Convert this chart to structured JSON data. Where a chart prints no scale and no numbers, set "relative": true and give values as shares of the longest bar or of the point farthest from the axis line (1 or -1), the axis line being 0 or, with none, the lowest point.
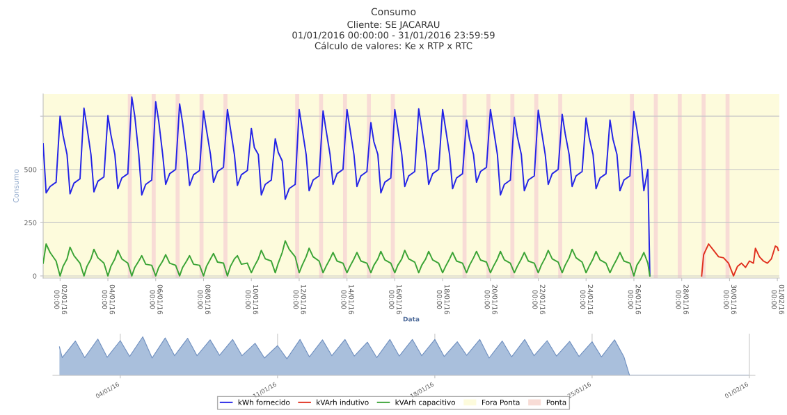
{
  "chart_data": [
    {
      "type": "line",
      "title": "Consumo",
      "subtitle": "Cliente: SE JACARAU\n01/01/2016 00:00:00 - 31/01/2016 23:59:59\nCálculo de valores: Ke x RTP x RTC",
      "xlabel": "Data",
      "ylabel": "Consumo",
      "x": [
        "2016-01-01T07:00",
        "2016-01-01T10:00",
        "2016-01-01T14:00",
        "2016-01-01T20:00",
        "2016-01-02T00:00",
        "2016-01-02T03:00",
        "2016-01-02T07:00",
        "2016-01-02T10:00",
        "2016-01-02T14:00",
        "2016-01-02T20:00",
        "2016-01-03T00:00",
        "2016-01-03T03:00",
        "2016-01-03T07:00",
        "2016-01-03T10:00",
        "2016-01-03T14:00",
        "2016-01-03T20:00",
        "2016-01-04T00:00",
        "2016-01-04T03:00",
        "2016-01-04T07:00",
        "2016-01-04T10:00",
        "2016-01-04T14:00",
        "2016-01-04T20:00",
        "2016-01-05T00:00",
        "2016-01-05T03:00",
        "2016-01-05T07:00",
        "2016-01-05T10:00",
        "2016-01-05T14:00",
        "2016-01-05T20:00",
        "2016-01-06T00:00",
        "2016-01-06T03:00",
        "2016-01-06T07:00",
        "2016-01-06T10:00",
        "2016-01-06T14:00",
        "2016-01-06T20:00",
        "2016-01-07T00:00",
        "2016-01-07T03:00",
        "2016-01-07T07:00",
        "2016-01-07T10:00",
        "2016-01-07T14:00",
        "2016-01-07T20:00",
        "2016-01-08T00:00",
        "2016-01-08T03:00",
        "2016-01-08T07:00",
        "2016-01-08T10:00",
        "2016-01-08T14:00",
        "2016-01-08T20:00",
        "2016-01-09T00:00",
        "2016-01-09T03:00",
        "2016-01-09T07:00",
        "2016-01-09T10:00",
        "2016-01-09T14:00",
        "2016-01-09T20:00",
        "2016-01-10T00:00",
        "2016-01-10T03:00",
        "2016-01-10T07:00",
        "2016-01-10T10:00",
        "2016-01-10T14:00",
        "2016-01-10T20:00",
        "2016-01-11T00:00",
        "2016-01-11T03:00",
        "2016-01-11T07:00",
        "2016-01-11T10:00",
        "2016-01-11T14:00",
        "2016-01-11T20:00",
        "2016-01-12T00:00",
        "2016-01-12T03:00",
        "2016-01-12T07:00",
        "2016-01-12T10:00",
        "2016-01-12T14:00",
        "2016-01-12T20:00",
        "2016-01-13T00:00",
        "2016-01-13T03:00",
        "2016-01-13T07:00",
        "2016-01-13T10:00",
        "2016-01-13T14:00",
        "2016-01-13T20:00",
        "2016-01-14T00:00",
        "2016-01-14T03:00",
        "2016-01-14T07:00",
        "2016-01-14T10:00",
        "2016-01-14T14:00",
        "2016-01-14T20:00",
        "2016-01-15T00:00",
        "2016-01-15T03:00",
        "2016-01-15T07:00",
        "2016-01-15T10:00",
        "2016-01-15T14:00",
        "2016-01-15T20:00",
        "2016-01-16T00:00",
        "2016-01-16T03:00",
        "2016-01-16T07:00",
        "2016-01-16T10:00",
        "2016-01-16T14:00",
        "2016-01-16T20:00",
        "2016-01-17T00:00",
        "2016-01-17T03:00",
        "2016-01-17T07:00",
        "2016-01-17T10:00",
        "2016-01-17T14:00",
        "2016-01-17T20:00",
        "2016-01-18T00:00",
        "2016-01-18T03:00",
        "2016-01-18T07:00",
        "2016-01-18T10:00",
        "2016-01-18T14:00",
        "2016-01-18T20:00",
        "2016-01-19T00:00",
        "2016-01-19T03:00",
        "2016-01-19T07:00",
        "2016-01-19T10:00",
        "2016-01-19T14:00",
        "2016-01-19T20:00",
        "2016-01-20T00:00",
        "2016-01-20T03:00",
        "2016-01-20T07:00",
        "2016-01-20T10:00",
        "2016-01-20T14:00",
        "2016-01-20T20:00",
        "2016-01-21T00:00",
        "2016-01-21T03:00",
        "2016-01-21T07:00",
        "2016-01-21T10:00",
        "2016-01-21T14:00",
        "2016-01-21T20:00",
        "2016-01-22T00:00",
        "2016-01-22T03:00",
        "2016-01-22T07:00",
        "2016-01-22T10:00",
        "2016-01-22T14:00",
        "2016-01-22T20:00",
        "2016-01-23T00:00",
        "2016-01-23T03:00",
        "2016-01-23T07:00",
        "2016-01-23T10:00",
        "2016-01-23T14:00",
        "2016-01-23T20:00",
        "2016-01-24T00:00",
        "2016-01-24T03:00",
        "2016-01-24T07:00",
        "2016-01-24T10:00",
        "2016-01-24T14:00",
        "2016-01-24T20:00",
        "2016-01-25T00:00",
        "2016-01-25T03:00",
        "2016-01-25T07:00",
        "2016-01-25T10:00",
        "2016-01-25T14:00",
        "2016-01-25T20:00",
        "2016-01-26T00:00",
        "2016-01-26T03:00",
        "2016-01-26T07:00",
        "2016-01-26T10:00",
        "2016-01-26T14:00",
        "2016-01-26T16:00"
      ],
      "series": [
        {
          "name": "kWh fornecido",
          "color": "#2323e6",
          "values": [
            620,
            390,
            420,
            440,
            750,
            660,
            570,
            386,
            436,
            456,
            788,
            698,
            570,
            395,
            445,
            465,
            753,
            663,
            570,
            410,
            460,
            480,
            840,
            750,
            570,
            380,
            430,
            450,
            818,
            728,
            570,
            430,
            480,
            500,
            808,
            718,
            570,
            425,
            475,
            495,
            775,
            685,
            570,
            440,
            490,
            510,
            781,
            691,
            570,
            425,
            475,
            495,
            693,
            603,
            570,
            380,
            430,
            450,
            644,
            580,
            540,
            360,
            410,
            430,
            781,
            691,
            570,
            400,
            450,
            470,
            775,
            685,
            570,
            430,
            480,
            500,
            781,
            691,
            570,
            420,
            470,
            490,
            720,
            630,
            570,
            390,
            440,
            460,
            781,
            691,
            570,
            420,
            470,
            490,
            785,
            695,
            570,
            430,
            480,
            500,
            781,
            691,
            570,
            410,
            460,
            480,
            732,
            642,
            570,
            440,
            490,
            510,
            781,
            691,
            570,
            380,
            430,
            450,
            745,
            655,
            570,
            400,
            450,
            470,
            778,
            688,
            570,
            430,
            480,
            500,
            759,
            669,
            570,
            420,
            470,
            490,
            742,
            652,
            570,
            410,
            460,
            480,
            732,
            642,
            570,
            400,
            450,
            470,
            772,
            690,
            560,
            400,
            500,
            0
          ]
        },
        {
          "name": "kVArh indutivo",
          "color": "#e0301e",
          "x": [
            "2016-01-28T20:00",
            "2016-01-28T22:00",
            "2016-01-29T03:00",
            "2016-01-29T08:00",
            "2016-01-29T13:00",
            "2016-01-29T18:00",
            "2016-01-29T23:00",
            "2016-01-30T04:00",
            "2016-01-30T08:00",
            "2016-01-30T12:00",
            "2016-01-30T16:00",
            "2016-01-30T20:00",
            "2016-01-31T00:00",
            "2016-01-31T02:00",
            "2016-01-31T06:00",
            "2016-01-31T10:00",
            "2016-01-31T14:00",
            "2016-01-31T18:00",
            "2016-01-31T22:00",
            "2016-02-01T00:00",
            "2016-02-01T01:00"
          ],
          "values": [
            0,
            100,
            150,
            120,
            90,
            85,
            60,
            0,
            45,
            60,
            40,
            70,
            60,
            130,
            90,
            70,
            60,
            80,
            140,
            135,
            120
          ]
        },
        {
          "name": "kVArh capacitivo",
          "color": "#3aa335",
          "values": [
            60,
            150,
            110,
            70,
            0,
            45,
            80,
            135,
            95,
            60,
            0,
            45,
            80,
            125,
            85,
            60,
            0,
            45,
            80,
            120,
            80,
            60,
            0,
            40,
            70,
            95,
            55,
            50,
            0,
            40,
            70,
            100,
            60,
            50,
            0,
            40,
            70,
            95,
            55,
            50,
            0,
            45,
            80,
            105,
            65,
            60,
            0,
            45,
            80,
            95,
            55,
            60,
            15,
            45,
            80,
            120,
            80,
            70,
            15,
            60,
            110,
            165,
            125,
            90,
            15,
            50,
            90,
            130,
            90,
            70,
            15,
            45,
            80,
            110,
            70,
            60,
            15,
            45,
            80,
            110,
            70,
            60,
            15,
            50,
            80,
            115,
            75,
            60,
            15,
            50,
            80,
            120,
            80,
            65,
            15,
            50,
            80,
            115,
            75,
            60,
            15,
            45,
            80,
            110,
            70,
            60,
            15,
            50,
            85,
            115,
            75,
            65,
            15,
            45,
            80,
            115,
            75,
            60,
            15,
            45,
            80,
            110,
            70,
            60,
            15,
            50,
            85,
            120,
            80,
            65,
            15,
            50,
            85,
            125,
            85,
            65,
            15,
            45,
            80,
            115,
            75,
            60,
            15,
            45,
            80,
            110,
            70,
            60,
            0,
            50,
            80,
            110,
            60,
            0
          ]
        }
      ],
      "xlim": [
        "2016-01-01T07:00",
        "2016-02-01T02:00"
      ],
      "xticks": [
        {
          "value": "2016-01-02T00:00",
          "label": "02/01/16\n00:00"
        },
        {
          "value": "2016-01-04T00:00",
          "label": "04/01/16\n00:00"
        },
        {
          "value": "2016-01-06T00:00",
          "label": "06/01/16\n00:00"
        },
        {
          "value": "2016-01-08T00:00",
          "label": "08/01/16\n00:00"
        },
        {
          "value": "2016-01-10T00:00",
          "label": "10/01/16\n00:00"
        },
        {
          "value": "2016-01-12T00:00",
          "label": "12/01/16\n00:00"
        },
        {
          "value": "2016-01-14T00:00",
          "label": "14/01/16\n00:00"
        },
        {
          "value": "2016-01-16T00:00",
          "label": "16/01/16\n00:00"
        },
        {
          "value": "2016-01-18T00:00",
          "label": "18/01/16\n00:00"
        },
        {
          "value": "2016-01-20T00:00",
          "label": "20/01/16\n00:00"
        },
        {
          "value": "2016-01-22T00:00",
          "label": "22/01/16\n00:00"
        },
        {
          "value": "2016-01-24T00:00",
          "label": "24/01/16\n00:00"
        },
        {
          "value": "2016-01-26T00:00",
          "label": "26/01/16\n00:00"
        },
        {
          "value": "2016-01-28T00:00",
          "label": "28/01/16\n00:00"
        },
        {
          "value": "2016-01-30T00:00",
          "label": "30/01/16\n00:00"
        },
        {
          "value": "2016-02-01T00:00",
          "label": "01/02/16\n00:00"
        }
      ],
      "ylim": [
        -10,
        855
      ],
      "yticks": [
        0,
        250,
        500,
        {
          "value": 750,
          "label": null
        }
      ],
      "bands": [
        {
          "axis": "x",
          "from": "2016-01-01T07:00",
          "to": "2016-02-01T02:00",
          "label": "Fora Ponta",
          "color": "#fdfbdc"
        },
        {
          "axis": "x",
          "from": "2016-01-04T20:00",
          "to": "2016-01-05T00:00",
          "label": "Ponta",
          "color": "#f8dcd6"
        },
        {
          "axis": "x",
          "from": "2016-01-05T20:00",
          "to": "2016-01-06T00:00",
          "color": "#f8dcd6"
        },
        {
          "axis": "x",
          "from": "2016-01-06T20:00",
          "to": "2016-01-07T00:00",
          "color": "#f8dcd6"
        },
        {
          "axis": "x",
          "from": "2016-01-07T20:00",
          "to": "2016-01-08T00:00",
          "color": "#f8dcd6"
        },
        {
          "axis": "x",
          "from": "2016-01-08T20:00",
          "to": "2016-01-09T00:00",
          "color": "#f8dcd6"
        },
        {
          "axis": "x",
          "from": "2016-01-11T20:00",
          "to": "2016-01-12T00:00",
          "color": "#f8dcd6"
        },
        {
          "axis": "x",
          "from": "2016-01-12T20:00",
          "to": "2016-01-13T00:00",
          "color": "#f8dcd6"
        },
        {
          "axis": "x",
          "from": "2016-01-13T20:00",
          "to": "2016-01-14T00:00",
          "color": "#f8dcd6"
        },
        {
          "axis": "x",
          "from": "2016-01-14T20:00",
          "to": "2016-01-15T00:00",
          "color": "#f8dcd6"
        },
        {
          "axis": "x",
          "from": "2016-01-15T20:00",
          "to": "2016-01-16T00:00",
          "color": "#f8dcd6"
        },
        {
          "axis": "x",
          "from": "2016-01-18T20:00",
          "to": "2016-01-19T00:00",
          "color": "#f8dcd6"
        },
        {
          "axis": "x",
          "from": "2016-01-19T20:00",
          "to": "2016-01-20T00:00",
          "color": "#f8dcd6"
        },
        {
          "axis": "x",
          "from": "2016-01-20T20:00",
          "to": "2016-01-21T00:00",
          "color": "#f8dcd6"
        },
        {
          "axis": "x",
          "from": "2016-01-21T20:00",
          "to": "2016-01-22T00:00",
          "color": "#f8dcd6"
        },
        {
          "axis": "x",
          "from": "2016-01-22T20:00",
          "to": "2016-01-23T00:00",
          "color": "#f8dcd6"
        },
        {
          "axis": "x",
          "from": "2016-01-25T20:00",
          "to": "2016-01-26T00:00",
          "color": "#f8dcd6"
        },
        {
          "axis": "x",
          "from": "2016-01-26T20:00",
          "to": "2016-01-27T00:00",
          "color": "#f8dcd6"
        },
        {
          "axis": "x",
          "from": "2016-01-27T20:00",
          "to": "2016-01-28T00:00",
          "color": "#f8dcd6"
        },
        {
          "axis": "x",
          "from": "2016-01-28T20:00",
          "to": "2016-01-29T00:00",
          "color": "#f8dcd6"
        },
        {
          "axis": "x",
          "from": "2016-01-29T20:00",
          "to": "2016-01-30T00:00",
          "color": "#f8dcd6"
        }
      ],
      "grid": "y",
      "legend": "bottom"
    },
    {
      "type": "area",
      "relative": true,
      "tick_labels": "x",
      "grid": "x",
      "x": [
        "2016-01-01T07:00",
        "2016-01-01T10:00",
        "2016-01-02T00:00",
        "2016-01-02T10:00",
        "2016-01-03T00:00",
        "2016-01-03T10:00",
        "2016-01-04T00:00",
        "2016-01-04T10:00",
        "2016-01-05T00:00",
        "2016-01-05T10:00",
        "2016-01-06T00:00",
        "2016-01-06T10:00",
        "2016-01-07T00:00",
        "2016-01-07T10:00",
        "2016-01-08T00:00",
        "2016-01-08T10:00",
        "2016-01-09T00:00",
        "2016-01-09T10:00",
        "2016-01-10T00:00",
        "2016-01-10T10:00",
        "2016-01-11T00:00",
        "2016-01-11T10:00",
        "2016-01-12T00:00",
        "2016-01-12T10:00",
        "2016-01-13T00:00",
        "2016-01-13T10:00",
        "2016-01-14T00:00",
        "2016-01-14T10:00",
        "2016-01-15T00:00",
        "2016-01-15T10:00",
        "2016-01-16T00:00",
        "2016-01-16T10:00",
        "2016-01-17T00:00",
        "2016-01-17T10:00",
        "2016-01-18T00:00",
        "2016-01-18T10:00",
        "2016-01-19T00:00",
        "2016-01-19T10:00",
        "2016-01-20T00:00",
        "2016-01-20T10:00",
        "2016-01-21T00:00",
        "2016-01-21T10:00",
        "2016-01-22T00:00",
        "2016-01-22T10:00",
        "2016-01-23T00:00",
        "2016-01-23T10:00",
        "2016-01-24T00:00",
        "2016-01-24T10:00",
        "2016-01-25T00:00",
        "2016-01-25T10:00",
        "2016-01-26T00:00",
        "2016-01-26T10:00",
        "2016-01-26T16:00",
        "2016-01-31T23:00"
      ],
      "series": [
        {
          "color": "#a9bfdc",
          "values": [
            0.74,
            0.46,
            0.89,
            0.46,
            0.94,
            0.47,
            0.9,
            0.49,
            1.0,
            0.45,
            0.97,
            0.51,
            0.96,
            0.51,
            0.92,
            0.52,
            0.93,
            0.51,
            0.83,
            0.45,
            0.77,
            0.43,
            0.93,
            0.48,
            0.92,
            0.51,
            0.93,
            0.5,
            0.86,
            0.46,
            0.93,
            0.5,
            0.93,
            0.51,
            0.93,
            0.49,
            0.87,
            0.52,
            0.93,
            0.45,
            0.89,
            0.48,
            0.93,
            0.51,
            0.9,
            0.5,
            0.88,
            0.49,
            0.87,
            0.48,
            0.92,
            0.48,
            0,
            0
          ]
        }
      ],
      "xlim": [
        "2016-01-01T00:00",
        "2016-02-01T06:00"
      ],
      "xticks": [
        {
          "value": "2016-01-04T00:00",
          "label": "04/01/16"
        },
        {
          "value": "2016-01-11T00:00",
          "label": "11/01/16"
        },
        {
          "value": "2016-01-18T00:00",
          "label": "18/01/16"
        },
        {
          "value": "2016-01-25T00:00",
          "label": "25/01/16"
        },
        {
          "value": "2016-02-01T00:00",
          "label": "01/02/16"
        }
      ]
    }
  ]
}
